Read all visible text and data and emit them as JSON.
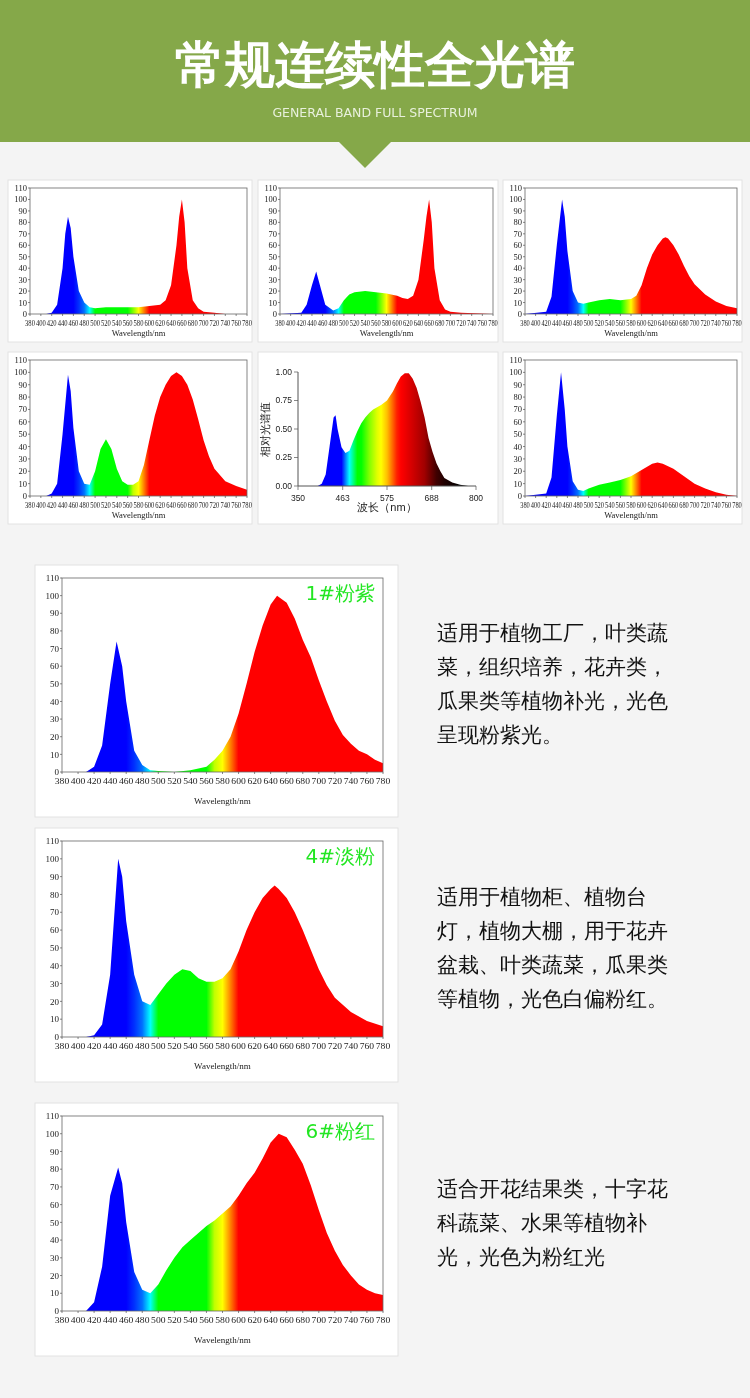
{
  "chart_data": [
    {
      "type": "other",
      "title": "常规连续性全光谱",
      "subtitle": "GENERAL BAND FULL SPECTRUM"
    },
    {
      "type": "area",
      "xlabel": "Wavelength/nm",
      "xlim": [
        380,
        780
      ],
      "ylim": [
        0,
        110
      ],
      "xticks": [
        380,
        400,
        420,
        440,
        460,
        480,
        500,
        520,
        540,
        560,
        580,
        600,
        620,
        640,
        660,
        680,
        700,
        720,
        740,
        760,
        780
      ],
      "yticks": [
        0,
        10,
        20,
        30,
        40,
        50,
        60,
        70,
        80,
        90,
        100,
        110
      ],
      "grid": false,
      "legend": false,
      "x": [
        380,
        400,
        410,
        420,
        430,
        440,
        445,
        450,
        455,
        460,
        470,
        480,
        490,
        500,
        520,
        540,
        560,
        580,
        600,
        620,
        630,
        640,
        650,
        655,
        660,
        665,
        670,
        680,
        690,
        700,
        720,
        740,
        780
      ],
      "values": [
        0,
        0,
        0,
        1,
        8,
        40,
        70,
        85,
        75,
        50,
        20,
        10,
        6,
        5,
        6,
        6,
        6,
        6,
        7,
        8,
        12,
        25,
        60,
        85,
        100,
        80,
        40,
        12,
        5,
        2,
        1,
        0,
        0
      ],
      "colors": [
        "#0000ff",
        "#0000ff",
        "#0000ff",
        "#0000ff",
        "#0000ff",
        "#0000ff",
        "#0000ff",
        "#0000ff",
        "#0000ff",
        "#0000ff",
        "#0030ff",
        "#0070ff",
        "#00ffff",
        "#00ff00",
        "#00ff00",
        "#00ff00",
        "#00ff00",
        "#ffff00",
        "#ff0000",
        "#ff0000",
        "#ff0000",
        "#ff0000",
        "#ff0000",
        "#ff0000",
        "#ff0000",
        "#ff0000",
        "#ff0000",
        "#ff0000",
        "#ff0000",
        "#ff0000",
        "#ff0000",
        "#ff0000",
        "#ff0000"
      ]
    },
    {
      "type": "area",
      "xlabel": "Wavelength/nm",
      "xlim": [
        380,
        780
      ],
      "ylim": [
        0,
        110
      ],
      "xticks": [
        380,
        400,
        420,
        440,
        460,
        480,
        500,
        520,
        540,
        560,
        580,
        600,
        620,
        640,
        660,
        680,
        700,
        720,
        740,
        760,
        780
      ],
      "yticks": [
        0,
        10,
        20,
        30,
        40,
        50,
        60,
        70,
        80,
        90,
        100,
        110
      ],
      "grid": false,
      "legend": false,
      "x": [
        380,
        420,
        430,
        440,
        448,
        455,
        465,
        480,
        490,
        500,
        510,
        520,
        540,
        560,
        580,
        600,
        610,
        620,
        630,
        640,
        650,
        655,
        660,
        665,
        670,
        680,
        690,
        700,
        720,
        780
      ],
      "values": [
        0,
        1,
        8,
        25,
        37,
        25,
        8,
        3,
        5,
        12,
        17,
        19,
        20,
        19,
        18,
        16,
        14,
        13,
        16,
        30,
        65,
        85,
        100,
        80,
        40,
        12,
        4,
        2,
        1,
        0
      ],
      "colors": [
        "#0000ff",
        "#0000ff",
        "#0000ff",
        "#0000ff",
        "#0000ff",
        "#0000ff",
        "#0000ff",
        "#0070ff",
        "#00ffff",
        "#00ff00",
        "#00ff00",
        "#00ff00",
        "#00ff00",
        "#00ff00",
        "#ffff00",
        "#ff0000",
        "#ff0000",
        "#ff0000",
        "#ff0000",
        "#ff0000",
        "#ff0000",
        "#ff0000",
        "#ff0000",
        "#ff0000",
        "#ff0000",
        "#ff0000",
        "#ff0000",
        "#ff0000",
        "#ff0000",
        "#ff0000"
      ]
    },
    {
      "type": "area",
      "xlabel": "Wavelength/nm",
      "xlim": [
        380,
        780
      ],
      "ylim": [
        0,
        110
      ],
      "xticks": [
        380,
        400,
        420,
        440,
        460,
        480,
        500,
        520,
        540,
        560,
        580,
        600,
        620,
        640,
        660,
        680,
        700,
        720,
        740,
        760,
        780
      ],
      "yticks": [
        0,
        10,
        20,
        30,
        40,
        50,
        60,
        70,
        80,
        90,
        100,
        110
      ],
      "grid": false,
      "legend": false,
      "x": [
        380,
        420,
        430,
        440,
        450,
        455,
        460,
        470,
        480,
        490,
        500,
        520,
        540,
        560,
        580,
        590,
        600,
        610,
        620,
        630,
        640,
        645,
        650,
        660,
        670,
        680,
        690,
        700,
        720,
        740,
        760,
        780
      ],
      "values": [
        0,
        2,
        15,
        60,
        100,
        85,
        55,
        20,
        10,
        9,
        10,
        12,
        13,
        12,
        13,
        16,
        25,
        40,
        52,
        60,
        66,
        67,
        66,
        60,
        52,
        42,
        33,
        26,
        17,
        11,
        7,
        5
      ],
      "colors": [
        "#0000ff",
        "#0000ff",
        "#0000ff",
        "#0000ff",
        "#0000ff",
        "#0000ff",
        "#0000ff",
        "#0030ff",
        "#0070ff",
        "#00ffff",
        "#00ff00",
        "#00ff00",
        "#00ff00",
        "#00ff00",
        "#ffff00",
        "#ff8000",
        "#ff0000",
        "#ff0000",
        "#ff0000",
        "#ff0000",
        "#ff0000",
        "#ff0000",
        "#ff0000",
        "#ff0000",
        "#ff0000",
        "#ff0000",
        "#ff0000",
        "#ff0000",
        "#ff0000",
        "#ff0000",
        "#ff0000",
        "#ff0000"
      ]
    },
    {
      "type": "area",
      "xlabel": "Wavelength/nm",
      "xlim": [
        380,
        780
      ],
      "ylim": [
        0,
        110
      ],
      "xticks": [
        380,
        400,
        420,
        440,
        460,
        480,
        500,
        520,
        540,
        560,
        580,
        600,
        620,
        640,
        660,
        680,
        700,
        720,
        740,
        760,
        780
      ],
      "yticks": [
        0,
        10,
        20,
        30,
        40,
        50,
        60,
        70,
        80,
        90,
        100,
        110
      ],
      "grid": false,
      "legend": false,
      "x": [
        380,
        410,
        420,
        430,
        440,
        450,
        455,
        460,
        470,
        480,
        490,
        500,
        510,
        520,
        530,
        540,
        550,
        560,
        570,
        580,
        590,
        600,
        610,
        620,
        630,
        640,
        650,
        660,
        670,
        680,
        690,
        700,
        710,
        720,
        740,
        760,
        780
      ],
      "values": [
        0,
        0,
        2,
        10,
        50,
        98,
        85,
        55,
        20,
        10,
        9,
        20,
        38,
        46,
        38,
        22,
        12,
        9,
        9,
        12,
        25,
        45,
        65,
        80,
        90,
        97,
        100,
        97,
        90,
        78,
        62,
        45,
        32,
        22,
        12,
        8,
        5
      ],
      "colors": [
        "#0000ff",
        "#0000ff",
        "#0000ff",
        "#0000ff",
        "#0000ff",
        "#0000ff",
        "#0000ff",
        "#0000ff",
        "#0030ff",
        "#0070ff",
        "#00ffff",
        "#00ff00",
        "#00ff00",
        "#00ff00",
        "#00ff00",
        "#00ff00",
        "#00ff00",
        "#00ff00",
        "#c0ff00",
        "#ffff00",
        "#ff8000",
        "#ff0000",
        "#ff0000",
        "#ff0000",
        "#ff0000",
        "#ff0000",
        "#ff0000",
        "#ff0000",
        "#ff0000",
        "#ff0000",
        "#ff0000",
        "#ff0000",
        "#ff0000",
        "#ff0000",
        "#ff0000",
        "#ff0000",
        "#ff0000"
      ]
    },
    {
      "type": "area",
      "xlabel": "波长（nm）",
      "ylabel": "相对光谱值",
      "xlim": [
        350,
        800
      ],
      "ylim": [
        0,
        1
      ],
      "xticks": [
        350,
        463,
        575,
        688,
        800
      ],
      "yticks": [
        {
          "value": 0,
          "label": "0.00"
        },
        {
          "value": 0.25,
          "label": "0.25"
        },
        {
          "value": 0.5,
          "label": "0.50"
        },
        {
          "value": 0.75,
          "label": "0.75"
        },
        {
          "value": 1,
          "label": "1.00"
        }
      ],
      "grid": false,
      "legend": false,
      "x": [
        400,
        410,
        420,
        430,
        440,
        445,
        450,
        460,
        470,
        480,
        490,
        500,
        510,
        520,
        530,
        540,
        550,
        560,
        575,
        590,
        600,
        610,
        620,
        630,
        640,
        650,
        660,
        670,
        680,
        690,
        700,
        710,
        720,
        740,
        760,
        780
      ],
      "values": [
        0,
        0.02,
        0.1,
        0.35,
        0.6,
        0.62,
        0.5,
        0.34,
        0.29,
        0.31,
        0.4,
        0.48,
        0.55,
        0.6,
        0.64,
        0.67,
        0.69,
        0.71,
        0.75,
        0.83,
        0.9,
        0.96,
        0.99,
        0.99,
        0.94,
        0.86,
        0.74,
        0.6,
        0.42,
        0.3,
        0.2,
        0.13,
        0.07,
        0.03,
        0.01,
        0
      ],
      "colors": [
        "#0000ff",
        "#0000ff",
        "#0000ff",
        "#0000ff",
        "#0000ff",
        "#0000ff",
        "#0000ff",
        "#0000ff",
        "#0080ff",
        "#00ffff",
        "#00ff80",
        "#00ff00",
        "#00ff00",
        "#40ff00",
        "#80ff00",
        "#b0ff00",
        "#e0ff00",
        "#ffff00",
        "#ffc000",
        "#ff6000",
        "#ff2000",
        "#ff0000",
        "#f00000",
        "#e00000",
        "#d00000",
        "#c00000",
        "#b00000",
        "#a00000",
        "#800000",
        "#600000",
        "#400000",
        "#300000",
        "#200000",
        "#100000",
        "#000000",
        "#000000"
      ]
    },
    {
      "type": "area",
      "xlabel": "Wavelength/nm",
      "xlim": [
        380,
        780
      ],
      "ylim": [
        0,
        110
      ],
      "xticks": [
        380,
        400,
        420,
        440,
        460,
        480,
        500,
        520,
        540,
        560,
        580,
        600,
        620,
        640,
        660,
        680,
        700,
        720,
        740,
        760,
        780
      ],
      "yticks": [
        0,
        10,
        20,
        30,
        40,
        50,
        60,
        70,
        80,
        90,
        100,
        110
      ],
      "grid": false,
      "legend": false,
      "x": [
        380,
        420,
        430,
        440,
        448,
        455,
        460,
        470,
        480,
        490,
        500,
        520,
        540,
        560,
        580,
        600,
        620,
        630,
        640,
        660,
        680,
        700,
        720,
        740,
        760,
        780
      ],
      "values": [
        0,
        2,
        15,
        65,
        100,
        70,
        40,
        12,
        5,
        4,
        6,
        9,
        11,
        13,
        16,
        21,
        26,
        27,
        26,
        22,
        16,
        10,
        6,
        3,
        1,
        0
      ],
      "colors": [
        "#0000ff",
        "#0000ff",
        "#0000ff",
        "#0000ff",
        "#0000ff",
        "#0000ff",
        "#0000ff",
        "#0030ff",
        "#0070ff",
        "#00ffff",
        "#00ff00",
        "#00ff00",
        "#00ff00",
        "#00ff00",
        "#ffff00",
        "#ff0000",
        "#ff0000",
        "#ff0000",
        "#ff0000",
        "#ff0000",
        "#ff0000",
        "#ff0000",
        "#ff0000",
        "#ff0000",
        "#ff0000",
        "#ff0000"
      ]
    },
    {
      "type": "area",
      "xlabel": "Wavelength/nm",
      "xlim": [
        380,
        780
      ],
      "ylim": [
        0,
        110
      ],
      "xticks": [
        380,
        400,
        420,
        440,
        460,
        480,
        500,
        520,
        540,
        560,
        580,
        600,
        620,
        640,
        660,
        680,
        700,
        720,
        740,
        760,
        780
      ],
      "yticks": [
        0,
        10,
        20,
        30,
        40,
        50,
        60,
        70,
        80,
        90,
        100,
        110
      ],
      "grid": false,
      "legend": false,
      "annotations": [
        "1#粉紫",
        "适用于植物工厂，叶类蔬菜，组织培养，花卉类，瓜果类等植物补光，光色呈现粉紫光。"
      ],
      "x": [
        380,
        400,
        410,
        420,
        430,
        440,
        448,
        455,
        460,
        470,
        480,
        490,
        500,
        520,
        540,
        560,
        570,
        580,
        590,
        600,
        610,
        620,
        630,
        640,
        648,
        660,
        670,
        680,
        690,
        700,
        710,
        720,
        730,
        740,
        750,
        760,
        770,
        780
      ],
      "values": [
        0,
        0,
        0,
        3,
        15,
        50,
        74,
        60,
        40,
        12,
        4,
        1,
        0.5,
        0,
        1,
        3,
        7,
        12,
        20,
        33,
        50,
        68,
        83,
        95,
        100,
        96,
        87,
        75,
        65,
        52,
        40,
        29,
        21,
        16,
        12,
        10,
        7,
        5
      ],
      "colors": [
        "#0000ff",
        "#0000ff",
        "#0000ff",
        "#0000ff",
        "#0000ff",
        "#0000ff",
        "#0000ff",
        "#0000ff",
        "#0000ff",
        "#0030ff",
        "#0070ff",
        "#00ffff",
        "#00ff00",
        "#00ff00",
        "#00ff00",
        "#00ff00",
        "#c0ff00",
        "#ffff00",
        "#ff8000",
        "#ff0000",
        "#ff0000",
        "#ff0000",
        "#ff0000",
        "#ff0000",
        "#ff0000",
        "#ff0000",
        "#ff0000",
        "#ff0000",
        "#ff0000",
        "#ff0000",
        "#ff0000",
        "#ff0000",
        "#ff0000",
        "#ff0000",
        "#ff0000",
        "#ff0000",
        "#ff0000",
        "#ff0000"
      ]
    },
    {
      "type": "area",
      "xlabel": "Wavelength/nm",
      "xlim": [
        380,
        780
      ],
      "ylim": [
        0,
        110
      ],
      "xticks": [
        380,
        400,
        420,
        440,
        460,
        480,
        500,
        520,
        540,
        560,
        580,
        600,
        620,
        640,
        660,
        680,
        700,
        720,
        740,
        760,
        780
      ],
      "yticks": [
        0,
        10,
        20,
        30,
        40,
        50,
        60,
        70,
        80,
        90,
        100,
        110
      ],
      "grid": false,
      "legend": false,
      "annotations": [
        "4#淡粉",
        "适用于植物柜、植物台灯，植物大棚，用于花卉盆栽、叶类蔬菜，瓜果类等植物，光色白偏粉红。"
      ],
      "x": [
        380,
        410,
        420,
        430,
        440,
        450,
        455,
        460,
        470,
        480,
        490,
        500,
        510,
        520,
        530,
        540,
        550,
        560,
        570,
        580,
        590,
        600,
        610,
        620,
        630,
        640,
        645,
        650,
        660,
        670,
        680,
        690,
        700,
        710,
        720,
        740,
        760,
        780
      ],
      "values": [
        0,
        0,
        1,
        7,
        35,
        100,
        90,
        65,
        35,
        20,
        18,
        24,
        30,
        35,
        38,
        37,
        33,
        31,
        31,
        33,
        38,
        48,
        60,
        70,
        78,
        83,
        85,
        83,
        78,
        70,
        60,
        49,
        38,
        29,
        22,
        14,
        9,
        6
      ],
      "colors": [
        "#0000ff",
        "#0000ff",
        "#0000ff",
        "#0000ff",
        "#0000ff",
        "#0000ff",
        "#0000ff",
        "#0000ff",
        "#0030ff",
        "#0070ff",
        "#00ffff",
        "#00ff00",
        "#00ff00",
        "#00ff00",
        "#00ff00",
        "#00ff00",
        "#00ff00",
        "#00ff00",
        "#c0ff00",
        "#ffff00",
        "#ff8000",
        "#ff0000",
        "#ff0000",
        "#ff0000",
        "#ff0000",
        "#ff0000",
        "#ff0000",
        "#ff0000",
        "#ff0000",
        "#ff0000",
        "#ff0000",
        "#ff0000",
        "#ff0000",
        "#ff0000",
        "#ff0000",
        "#ff0000",
        "#ff0000",
        "#ff0000"
      ]
    },
    {
      "type": "area",
      "xlabel": "Wavelength/nm",
      "xlim": [
        380,
        780
      ],
      "ylim": [
        0,
        110
      ],
      "xticks": [
        380,
        400,
        420,
        440,
        460,
        480,
        500,
        520,
        540,
        560,
        580,
        600,
        620,
        640,
        660,
        680,
        700,
        720,
        740,
        760,
        780
      ],
      "yticks": [
        0,
        10,
        20,
        30,
        40,
        50,
        60,
        70,
        80,
        90,
        100,
        110
      ],
      "grid": false,
      "legend": false,
      "annotations": [
        "6#粉红",
        "适合开花结果类，十字花科蔬菜、水果等植物补光，光色为粉红光"
      ],
      "x": [
        380,
        410,
        420,
        430,
        440,
        450,
        455,
        460,
        470,
        480,
        490,
        500,
        510,
        520,
        530,
        540,
        550,
        560,
        570,
        580,
        590,
        600,
        610,
        620,
        630,
        640,
        650,
        660,
        670,
        680,
        690,
        700,
        710,
        720,
        730,
        740,
        750,
        760,
        770,
        780
      ],
      "values": [
        0,
        0,
        5,
        25,
        65,
        81,
        72,
        50,
        22,
        12,
        10,
        15,
        23,
        30,
        36,
        40,
        44,
        48,
        51,
        55,
        59,
        65,
        72,
        78,
        86,
        95,
        100,
        98,
        91,
        83,
        71,
        57,
        44,
        34,
        26,
        20,
        15,
        12,
        10,
        9
      ],
      "colors": [
        "#0000ff",
        "#0000ff",
        "#0000ff",
        "#0000ff",
        "#0000ff",
        "#0000ff",
        "#0000ff",
        "#0000ff",
        "#0030ff",
        "#0070ff",
        "#00ffff",
        "#00ff00",
        "#00ff00",
        "#00ff00",
        "#00ff00",
        "#00ff00",
        "#00ff00",
        "#00ff00",
        "#c0ff00",
        "#ffff00",
        "#ff8000",
        "#ff0000",
        "#ff0000",
        "#ff0000",
        "#ff0000",
        "#ff0000",
        "#ff0000",
        "#ff0000",
        "#ff0000",
        "#ff0000",
        "#ff0000",
        "#ff0000",
        "#ff0000",
        "#ff0000",
        "#ff0000",
        "#ff0000",
        "#ff0000",
        "#ff0000",
        "#ff0000",
        "#ff0000"
      ]
    }
  ]
}
